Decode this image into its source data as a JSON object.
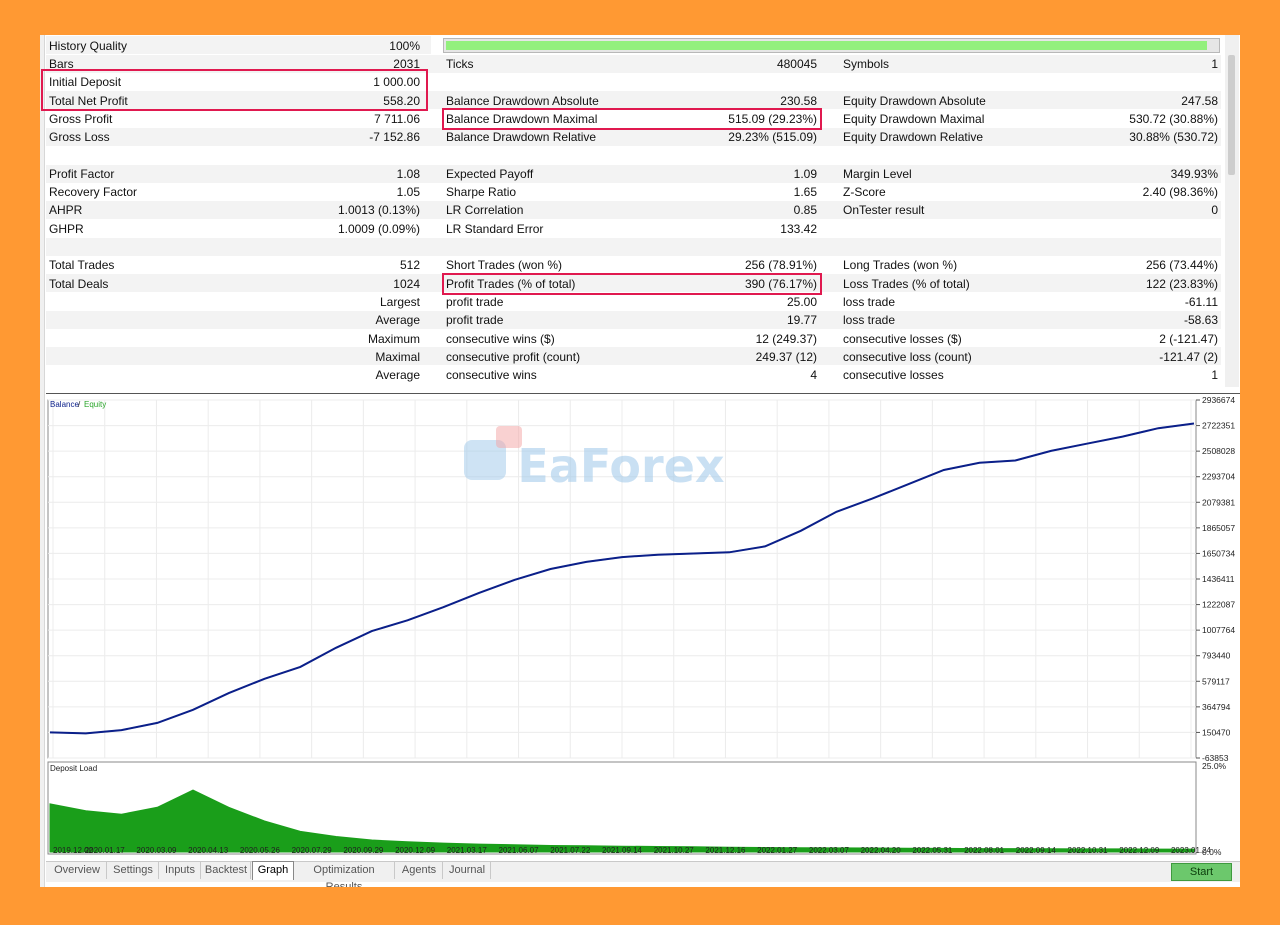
{
  "report": {
    "history_quality": {
      "label": "History Quality",
      "value": "100%",
      "percent": 100
    },
    "row1": {
      "bars_label": "Bars",
      "bars_value": "2031",
      "ticks_label": "Ticks",
      "ticks_value": "480045",
      "symbols_label": "Symbols",
      "symbols_value": "1"
    },
    "initial_deposit": {
      "label": "Initial Deposit",
      "value": "1 000.00"
    },
    "total_net_profit": {
      "label": "Total Net Profit",
      "value": "558.20"
    },
    "gross_profit": {
      "label": "Gross Profit",
      "value": "7 711.06"
    },
    "gross_loss": {
      "label": "Gross Loss",
      "value": "-7 152.86"
    },
    "balance_dd_abs": {
      "label": "Balance Drawdown Absolute",
      "value": "230.58"
    },
    "balance_dd_max": {
      "label": "Balance Drawdown Maximal",
      "value": "515.09 (29.23%)"
    },
    "balance_dd_rel": {
      "label": "Balance Drawdown Relative",
      "value": "29.23% (515.09)"
    },
    "equity_dd_abs": {
      "label": "Equity Drawdown Absolute",
      "value": "247.58"
    },
    "equity_dd_max": {
      "label": "Equity Drawdown Maximal",
      "value": "530.72 (30.88%)"
    },
    "equity_dd_rel": {
      "label": "Equity Drawdown Relative",
      "value": "30.88% (530.72)"
    },
    "profit_factor": {
      "label": "Profit Factor",
      "value": "1.08"
    },
    "recovery_factor": {
      "label": "Recovery Factor",
      "value": "1.05"
    },
    "ahpr": {
      "label": "AHPR",
      "value": "1.0013 (0.13%)"
    },
    "ghpr": {
      "label": "GHPR",
      "value": "1.0009 (0.09%)"
    },
    "expected_payoff": {
      "label": "Expected Payoff",
      "value": "1.09"
    },
    "sharpe_ratio": {
      "label": "Sharpe Ratio",
      "value": "1.65"
    },
    "lr_correlation": {
      "label": "LR Correlation",
      "value": "0.85"
    },
    "lr_std_error": {
      "label": "LR Standard Error",
      "value": "133.42"
    },
    "margin_level": {
      "label": "Margin Level",
      "value": "349.93%"
    },
    "z_score": {
      "label": "Z-Score",
      "value": "2.40 (98.36%)"
    },
    "ontester": {
      "label": "OnTester result",
      "value": "0"
    },
    "total_trades": {
      "label": "Total Trades",
      "value": "512"
    },
    "total_deals": {
      "label": "Total Deals",
      "value": "1024"
    },
    "short_trades": {
      "label": "Short Trades (won %)",
      "value": "256 (78.91%)"
    },
    "profit_trades": {
      "label": "Profit Trades (% of total)",
      "value": "390 (76.17%)"
    },
    "long_trades": {
      "label": "Long Trades (won %)",
      "value": "256 (73.44%)"
    },
    "loss_trades": {
      "label": "Loss Trades (% of total)",
      "value": "122 (23.83%)"
    },
    "largest": {
      "left": "Largest",
      "mid_label": "profit trade",
      "mid_value": "25.00",
      "right_label": "loss trade",
      "right_value": "-61.11"
    },
    "average": {
      "left": "Average",
      "mid_label": "profit trade",
      "mid_value": "19.77",
      "right_label": "loss trade",
      "right_value": "-58.63"
    },
    "maximum": {
      "left": "Maximum",
      "mid_label": "consecutive wins ($)",
      "mid_value": "12 (249.37)",
      "right_label": "consecutive losses ($)",
      "right_value": "2 (-121.47)"
    },
    "maximal": {
      "left": "Maximal",
      "mid_label": "consecutive profit (count)",
      "mid_value": "249.37 (12)",
      "right_label": "consecutive loss (count)",
      "right_value": "-121.47 (2)"
    },
    "average2": {
      "left": "Average",
      "mid_label": "consecutive wins",
      "mid_value": "4",
      "right_label": "consecutive losses",
      "right_value": "1"
    }
  },
  "watermark": "EaForex",
  "colors": {
    "balance": "#0b1f8a",
    "equity": "#2aa52a",
    "deposit_load": "#1a9e1a",
    "highlight": "#e0194f",
    "background": "#FF9933"
  },
  "chart_data": [
    {
      "type": "line",
      "legend": [
        "Balance",
        "Equity"
      ],
      "series": [
        {
          "name": "Balance",
          "values": [
            150470,
            142000,
            170000,
            230000,
            340000,
            480000,
            600000,
            700000,
            860000,
            1000000,
            1090000,
            1200000,
            1320000,
            1430000,
            1520000,
            1580000,
            1620000,
            1640000,
            1650000,
            1660000,
            1710000,
            1840000,
            2000000,
            2110000,
            2230000,
            2350000,
            2410000,
            2430000,
            2510000,
            2570000,
            2630000,
            2700000,
            2740000
          ]
        },
        {
          "name": "Equity",
          "values": [
            150470,
            142000,
            170000,
            230000,
            340000,
            480000,
            600000,
            700000,
            860000,
            1000000,
            1090000,
            1200000,
            1320000,
            1430000,
            1520000,
            1580000,
            1620000,
            1640000,
            1650000,
            1660000,
            1710000,
            1840000,
            2000000,
            2110000,
            2230000,
            2350000,
            2410000,
            2430000,
            2510000,
            2570000,
            2630000,
            2700000,
            2740000
          ]
        }
      ],
      "y_ticks": [
        "2936674",
        "2722351",
        "2508028",
        "2293704",
        "2079381",
        "1865057",
        "1650734",
        "1436411",
        "1222087",
        "1007764",
        "793440",
        "579117",
        "364794",
        "150470",
        "-63853"
      ],
      "ylim": [
        -63853,
        2936674
      ]
    },
    {
      "type": "area",
      "title": "Deposit Load",
      "series": [
        {
          "name": "Deposit Load",
          "values": [
            14,
            12,
            11,
            13,
            18,
            13,
            9,
            6,
            4.5,
            3.5,
            3,
            2.6,
            2.3,
            2.1,
            1.9,
            1.8,
            1.7,
            1.6,
            1.5,
            1.4,
            1.3,
            1.25,
            1.2,
            1.15,
            1.1,
            1.05,
            1.0,
            1.0,
            0.95,
            0.9,
            0.9,
            0.85,
            0.85
          ]
        }
      ],
      "y_ticks": [
        "25.0%",
        "0.0%"
      ],
      "ylim": [
        0,
        25
      ],
      "x_ticks": [
        "2019.12.02",
        "2020.01.17",
        "2020.03.09",
        "2020.04.13",
        "2020.05.26",
        "2020.07.29",
        "2020.09.29",
        "2020.12.09",
        "2021.03.17",
        "2021.06.07",
        "2021.07.22",
        "2021.09.14",
        "2021.10.27",
        "2021.12.16",
        "2022.01.27",
        "2022.03.07",
        "2022.04.20",
        "2022.05.31",
        "2022.08.01",
        "2022.09.14",
        "2022.10.31",
        "2022.12.09",
        "2023.01.24"
      ]
    }
  ],
  "tabs": [
    "Overview",
    "Settings",
    "Inputs",
    "Backtest",
    "Graph",
    "Optimization Results",
    "Agents",
    "Journal"
  ],
  "active_tab": "Graph",
  "start_button": "Start",
  "side_caption": "Deposit load"
}
